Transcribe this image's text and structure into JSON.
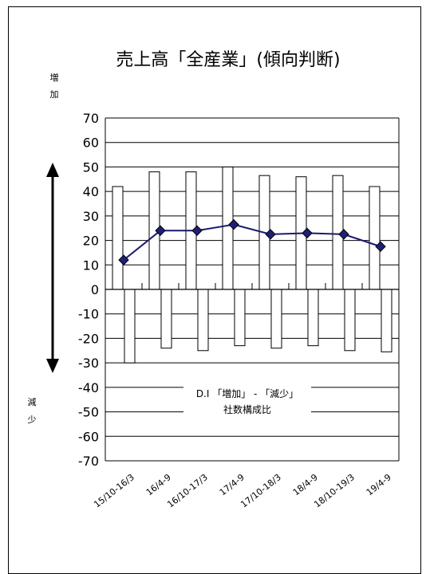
{
  "chart_data": {
    "type": "bar",
    "title": "売上高「全産業」(傾向判断)",
    "categories": [
      "15/10-16/3",
      "16/4-9",
      "16/10-17/3",
      "17/4-9",
      "17/10-18/3",
      "18/4-9",
      "18/10-19/3",
      "19/4-9"
    ],
    "series": [
      {
        "kind": "bar",
        "values": [
          42,
          48,
          48,
          50,
          46.5,
          46,
          46.5,
          42
        ]
      },
      {
        "kind": "bar",
        "values": [
          -30,
          -24,
          -25,
          -23,
          -24,
          -23,
          -25,
          -25.5
        ]
      },
      {
        "kind": "line",
        "values": [
          12,
          24,
          24,
          26.5,
          22.5,
          23,
          22.5,
          17.5
        ]
      }
    ],
    "ylim": [
      -70,
      70
    ],
    "yticks": [
      70,
      60,
      50,
      40,
      30,
      20,
      10,
      0,
      -10,
      -20,
      -30,
      -40,
      -50,
      -60,
      -70
    ],
    "grid": true,
    "annotations": {
      "increase": "増 加",
      "decrease": "減 少",
      "di_line1": "D.I 「増加」 - 「減少」",
      "di_line2": "社数構成比"
    },
    "colors": {
      "line": "#1a1a6e",
      "marker": "#1f1f7a",
      "bar_fill": "#ffffff",
      "bar_stroke": "#000000"
    }
  }
}
